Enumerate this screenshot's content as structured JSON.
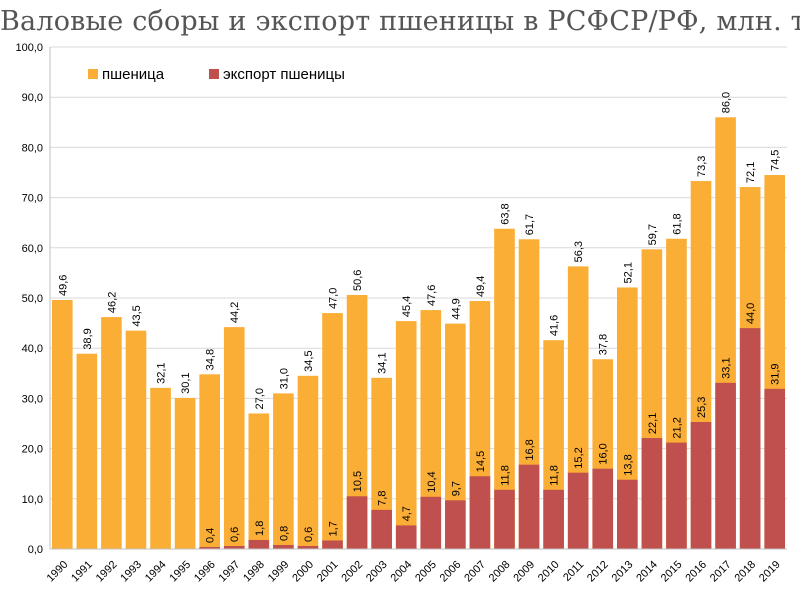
{
  "chart_data": {
    "type": "bar",
    "title": "Валовые сборы и экспорт пшеницы в РСФСР/РФ, млн. т",
    "ylim": [
      0,
      100
    ],
    "yticks": [
      "0,0",
      "10,0",
      "20,0",
      "30,0",
      "40,0",
      "50,0",
      "60,0",
      "70,0",
      "80,0",
      "90,0",
      "100,0"
    ],
    "grid": true,
    "legend_position": "top-left",
    "categories": [
      "1990",
      "1991",
      "1992",
      "1993",
      "1994",
      "1995",
      "1996",
      "1997",
      "1998",
      "1999",
      "2000",
      "2001",
      "2002",
      "2003",
      "2004",
      "2005",
      "2006",
      "2007",
      "2008",
      "2009",
      "2010",
      "2011",
      "2012",
      "2013",
      "2014",
      "2015",
      "2016",
      "2017",
      "2018",
      "2019"
    ],
    "series": [
      {
        "name": "пшеница",
        "color": "#FBAE36",
        "values": [
          49.6,
          38.9,
          46.2,
          43.5,
          32.1,
          30.1,
          34.8,
          44.2,
          27.0,
          31.0,
          34.5,
          47.0,
          50.6,
          34.1,
          45.4,
          47.6,
          44.9,
          49.4,
          63.8,
          61.7,
          41.6,
          56.3,
          37.8,
          52.1,
          59.7,
          61.8,
          73.3,
          86.0,
          72.1,
          74.5
        ],
        "labels": [
          "49,6",
          "38,9",
          "46,2",
          "43,5",
          "32,1",
          "30,1",
          "34,8",
          "44,2",
          "27,0",
          "31,0",
          "34,5",
          "47,0",
          "50,6",
          "34,1",
          "45,4",
          "47,6",
          "44,9",
          "49,4",
          "63,8",
          "61,7",
          "41,6",
          "56,3",
          "37,8",
          "52,1",
          "59,7",
          "61,8",
          "73,3",
          "86,0",
          "72,1",
          "74,5"
        ]
      },
      {
        "name": "экспорт пшеницы",
        "color": "#C0504D",
        "values": [
          null,
          null,
          null,
          null,
          null,
          null,
          0.4,
          0.6,
          1.8,
          0.8,
          0.6,
          1.7,
          10.5,
          7.8,
          4.7,
          10.4,
          9.7,
          14.5,
          11.8,
          16.8,
          11.8,
          15.2,
          16.0,
          13.8,
          22.1,
          21.2,
          25.3,
          33.1,
          44.0,
          31.9
        ],
        "labels": [
          "",
          "",
          "",
          "",
          "",
          "",
          "0,4",
          "0,6",
          "1,8",
          "0,8",
          "0,6",
          "1,7",
          "10,5",
          "7,8",
          "4,7",
          "10,4",
          "9,7",
          "14,5",
          "11,8",
          "16,8",
          "11,8",
          "15,2",
          "16,0",
          "13,8",
          "22,1",
          "21,2",
          "25,3",
          "33,1",
          "44,0",
          "31,9"
        ]
      }
    ]
  }
}
